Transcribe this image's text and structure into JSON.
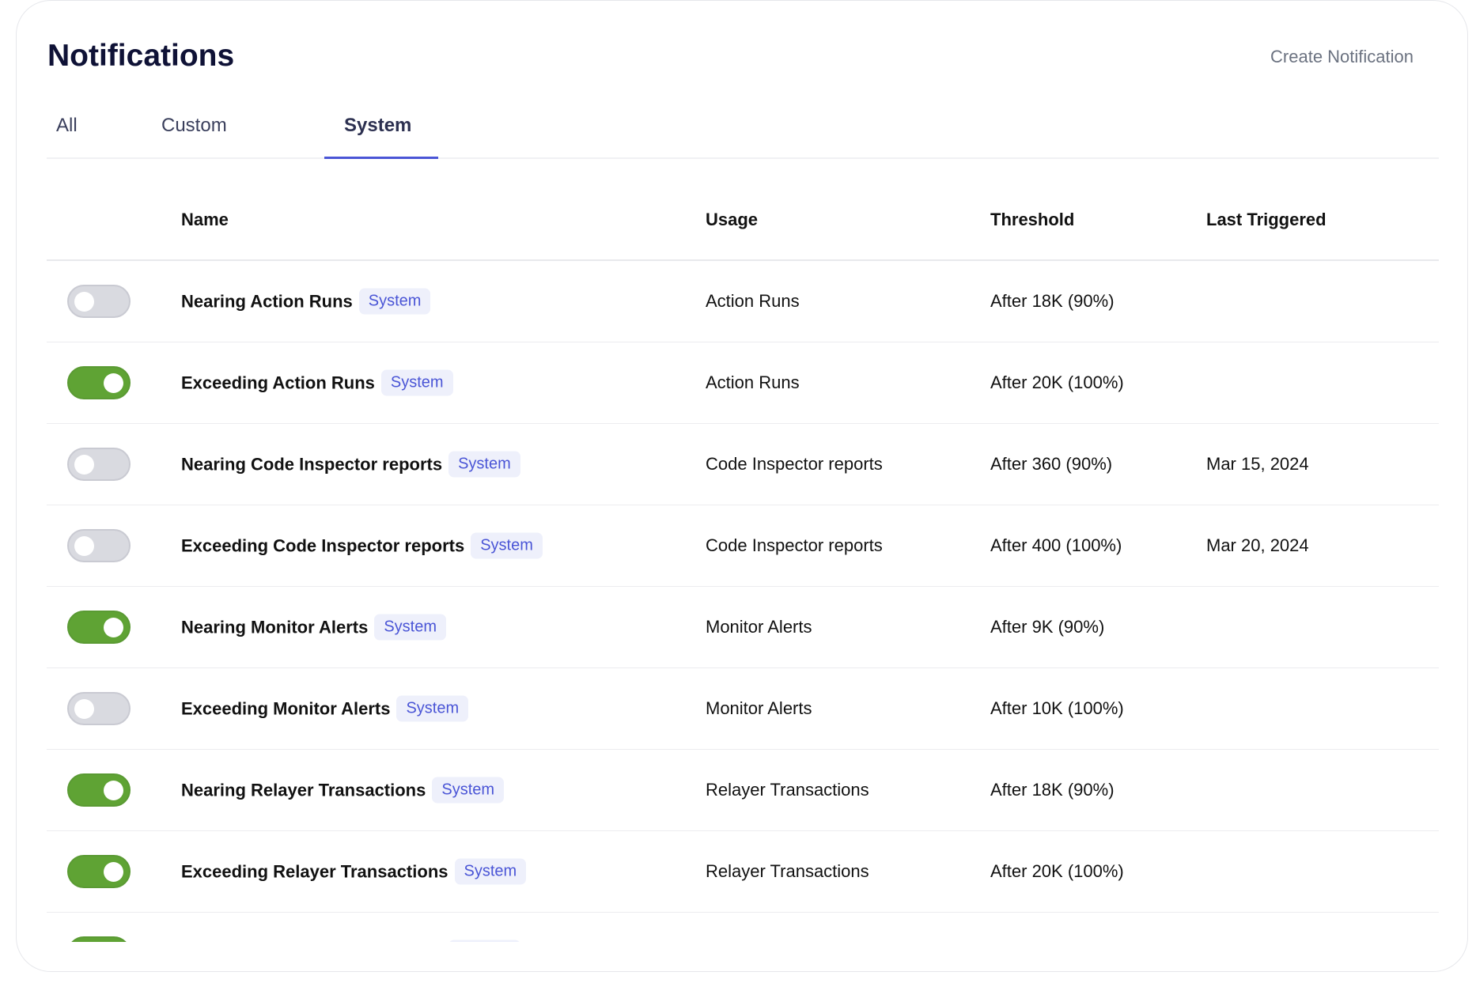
{
  "header": {
    "title": "Notifications",
    "create_label": "Create Notification"
  },
  "tabs": [
    {
      "label": "All"
    },
    {
      "label": "Custom"
    },
    {
      "label": "System",
      "active": true
    }
  ],
  "columns": {
    "name": "Name",
    "usage": "Usage",
    "threshold": "Threshold",
    "last_triggered": "Last Triggered"
  },
  "colors": {
    "toggle_on": "#5fa334",
    "accent": "#4a55d6",
    "badge_bg": "#eef0fb"
  },
  "rows": [
    {
      "enabled": false,
      "name": "Nearing Action Runs",
      "badge": "System",
      "usage": "Action Runs",
      "threshold": "After 18K (90%)",
      "last_triggered": ""
    },
    {
      "enabled": true,
      "name": "Exceeding Action Runs",
      "badge": "System",
      "usage": "Action Runs",
      "threshold": "After 20K (100%)",
      "last_triggered": ""
    },
    {
      "enabled": false,
      "name": "Nearing Code Inspector reports",
      "badge": "System",
      "usage": "Code Inspector reports",
      "threshold": "After 360 (90%)",
      "last_triggered": "Mar 15, 2024"
    },
    {
      "enabled": false,
      "name": "Exceeding Code Inspector reports",
      "badge": "System",
      "usage": "Code Inspector reports",
      "threshold": "After 400 (100%)",
      "last_triggered": "Mar 20, 2024"
    },
    {
      "enabled": true,
      "name": "Nearing Monitor Alerts",
      "badge": "System",
      "usage": "Monitor Alerts",
      "threshold": "After 9K (90%)",
      "last_triggered": ""
    },
    {
      "enabled": false,
      "name": "Exceeding Monitor Alerts",
      "badge": "System",
      "usage": "Monitor Alerts",
      "threshold": "After 10K (100%)",
      "last_triggered": ""
    },
    {
      "enabled": true,
      "name": "Nearing Relayer Transactions",
      "badge": "System",
      "usage": "Relayer Transactions",
      "threshold": "After 18K (90%)",
      "last_triggered": ""
    },
    {
      "enabled": true,
      "name": "Exceeding Relayer Transactions",
      "badge": "System",
      "usage": "Relayer Transactions",
      "threshold": "After 20K (100%)",
      "last_triggered": ""
    },
    {
      "enabled": true,
      "name": "",
      "badge": "System",
      "usage": "",
      "threshold": "",
      "last_triggered": ""
    }
  ]
}
